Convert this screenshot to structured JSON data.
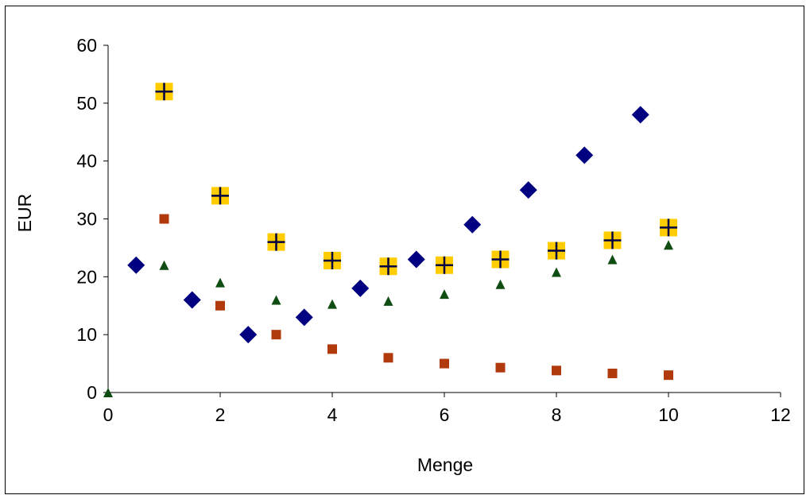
{
  "chart_data": {
    "type": "scatter",
    "xlabel": "Menge",
    "ylabel": "EUR",
    "xlim": [
      0,
      12
    ],
    "ylim": [
      0,
      60
    ],
    "xticks": [
      "0",
      "2",
      "4",
      "6",
      "8",
      "10",
      "12"
    ],
    "yticks": [
      "0",
      "10",
      "20",
      "30",
      "40",
      "50",
      "60"
    ],
    "grid": false,
    "legend": "none",
    "series": [
      {
        "marker": "diamond",
        "color": "#000080",
        "points": [
          [
            0.5,
            22
          ],
          [
            1.5,
            16
          ],
          [
            2.5,
            10
          ],
          [
            3.5,
            13
          ],
          [
            4.5,
            18
          ],
          [
            5.5,
            23
          ],
          [
            6.5,
            29
          ],
          [
            7.5,
            35
          ],
          [
            8.5,
            41
          ],
          [
            9.5,
            48
          ]
        ]
      },
      {
        "marker": "square",
        "color": "#B03A0C",
        "points": [
          [
            1,
            30
          ],
          [
            2,
            15
          ],
          [
            3,
            10
          ],
          [
            4,
            7.5
          ],
          [
            5,
            6
          ],
          [
            6,
            5
          ],
          [
            7,
            4.3
          ],
          [
            8,
            3.8
          ],
          [
            9,
            3.3
          ],
          [
            10,
            3
          ]
        ]
      },
      {
        "marker": "triangle",
        "color": "#0F4D12",
        "points": [
          [
            0,
            0
          ],
          [
            1,
            22
          ],
          [
            2,
            19
          ],
          [
            3,
            16
          ],
          [
            4,
            15.3
          ],
          [
            5,
            15.8
          ],
          [
            6,
            17
          ],
          [
            7,
            18.7
          ],
          [
            8,
            20.8
          ],
          [
            9,
            23
          ],
          [
            10,
            25.5
          ]
        ]
      },
      {
        "marker": "square-plus",
        "color": "#FFCC00",
        "stroke": "#000040",
        "points": [
          [
            1,
            52
          ],
          [
            2,
            34
          ],
          [
            3,
            26
          ],
          [
            4,
            22.8
          ],
          [
            5,
            21.8
          ],
          [
            6,
            22
          ],
          [
            7,
            23
          ],
          [
            8,
            24.5
          ],
          [
            9,
            26.3
          ],
          [
            10,
            28.5
          ]
        ]
      }
    ]
  }
}
